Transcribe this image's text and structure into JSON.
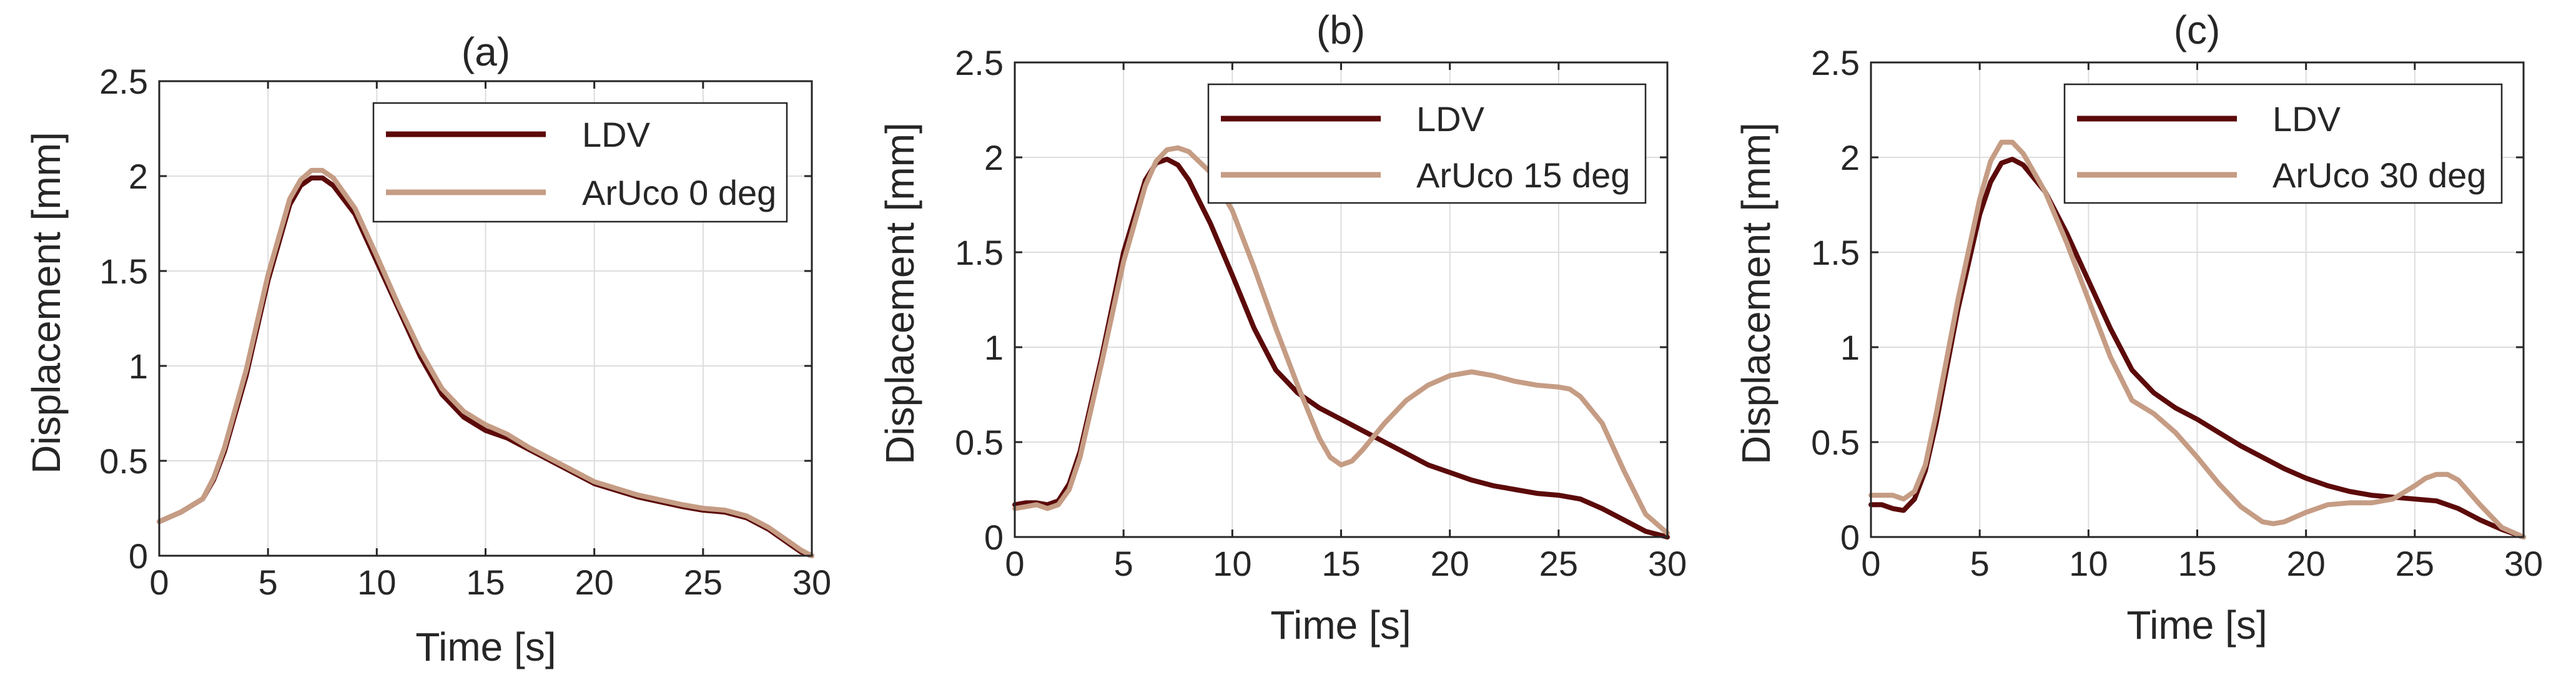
{
  "figure": {
    "colors": {
      "ldv": "#5c0a0a",
      "aruco": "#c59c84",
      "grid": "#dddddd",
      "axis": "#262626",
      "text": "#262626"
    }
  },
  "chart_data": [
    {
      "type": "line",
      "title": "(a)",
      "xlabel": "Time [s]",
      "ylabel": "Displacement [mm]",
      "xlim": [
        0,
        30
      ],
      "ylim": [
        0,
        2.5
      ],
      "xticks": [
        0,
        5,
        10,
        15,
        20,
        25,
        30
      ],
      "xtick_labels": [
        "0",
        "5",
        "10",
        "15",
        "20",
        "25",
        "30"
      ],
      "yticks": [
        0,
        0.5,
        1,
        1.5,
        2,
        2.5
      ],
      "ytick_labels": [
        "0",
        "0.5",
        "1",
        "1.5",
        "2",
        "2.5"
      ],
      "grid": true,
      "legend_position": "top-right",
      "series": [
        {
          "name": "LDV",
          "color": "#5c0a0a",
          "x": [
            0,
            1,
            2,
            2.5,
            3,
            4,
            5,
            6,
            6.5,
            7,
            7.5,
            8,
            9,
            10,
            11,
            12,
            13,
            14,
            15,
            16,
            17,
            18,
            19,
            20,
            22,
            24,
            25,
            26,
            27,
            28,
            29,
            29.5,
            30
          ],
          "y": [
            0.18,
            0.23,
            0.3,
            0.4,
            0.55,
            0.95,
            1.45,
            1.85,
            1.95,
            1.99,
            1.99,
            1.95,
            1.8,
            1.55,
            1.3,
            1.05,
            0.85,
            0.73,
            0.66,
            0.62,
            0.56,
            0.5,
            0.44,
            0.38,
            0.31,
            0.26,
            0.24,
            0.23,
            0.2,
            0.14,
            0.06,
            0.02,
            0
          ]
        },
        {
          "name": "ArUco 0 deg",
          "color": "#c59c84",
          "x": [
            0,
            1,
            2,
            2.5,
            3,
            4,
            5,
            6,
            6.5,
            7,
            7.5,
            8,
            9,
            10,
            11,
            12,
            13,
            14,
            15,
            16,
            17,
            18,
            19,
            20,
            22,
            24,
            25,
            26,
            27,
            28,
            29,
            29.5,
            30
          ],
          "y": [
            0.18,
            0.23,
            0.3,
            0.41,
            0.57,
            0.98,
            1.48,
            1.88,
            1.98,
            2.03,
            2.03,
            1.99,
            1.83,
            1.58,
            1.32,
            1.08,
            0.88,
            0.76,
            0.69,
            0.64,
            0.57,
            0.51,
            0.45,
            0.39,
            0.32,
            0.27,
            0.25,
            0.24,
            0.21,
            0.15,
            0.07,
            0.03,
            0
          ]
        }
      ]
    },
    {
      "type": "line",
      "title": "(b)",
      "xlabel": "Time [s]",
      "ylabel": "Displacement [mm]",
      "xlim": [
        0,
        30
      ],
      "ylim": [
        0,
        2.5
      ],
      "xticks": [
        0,
        5,
        10,
        15,
        20,
        25,
        30
      ],
      "xtick_labels": [
        "0",
        "5",
        "10",
        "15",
        "20",
        "25",
        "30"
      ],
      "yticks": [
        0,
        0.5,
        1,
        1.5,
        2,
        2.5
      ],
      "ytick_labels": [
        "0",
        "0.5",
        "1",
        "1.5",
        "2",
        "2.5"
      ],
      "grid": true,
      "legend_position": "top-right",
      "series": [
        {
          "name": "LDV",
          "color": "#5c0a0a",
          "x": [
            0,
            0.5,
            1,
            1.5,
            2,
            2.5,
            3,
            4,
            5,
            6,
            6.5,
            7,
            7.5,
            8,
            9,
            10,
            11,
            12,
            13,
            14,
            15,
            16,
            17,
            18,
            19,
            20,
            21,
            22,
            23,
            24,
            25,
            26,
            27,
            28,
            29,
            30
          ],
          "y": [
            0.17,
            0.18,
            0.18,
            0.17,
            0.19,
            0.28,
            0.45,
            0.95,
            1.5,
            1.88,
            1.97,
            1.99,
            1.96,
            1.88,
            1.65,
            1.38,
            1.1,
            0.88,
            0.76,
            0.68,
            0.62,
            0.56,
            0.5,
            0.44,
            0.38,
            0.34,
            0.3,
            0.27,
            0.25,
            0.23,
            0.22,
            0.2,
            0.15,
            0.09,
            0.03,
            0
          ]
        },
        {
          "name": "ArUco 15 deg",
          "color": "#c59c84",
          "x": [
            0,
            0.5,
            1,
            1.5,
            2,
            2.5,
            3,
            4,
            5,
            6,
            6.5,
            7,
            7.5,
            8,
            9,
            10,
            11,
            12,
            13,
            14,
            14.5,
            15,
            15.5,
            16,
            17,
            18,
            19,
            20,
            21,
            22,
            23,
            24,
            25,
            25.5,
            26,
            27,
            28,
            29,
            30
          ],
          "y": [
            0.15,
            0.16,
            0.17,
            0.15,
            0.17,
            0.25,
            0.42,
            0.92,
            1.45,
            1.85,
            1.98,
            2.04,
            2.05,
            2.03,
            1.92,
            1.72,
            1.42,
            1.1,
            0.8,
            0.52,
            0.42,
            0.38,
            0.4,
            0.46,
            0.6,
            0.72,
            0.8,
            0.85,
            0.87,
            0.85,
            0.82,
            0.8,
            0.79,
            0.78,
            0.74,
            0.6,
            0.35,
            0.12,
            0.02
          ]
        }
      ]
    },
    {
      "type": "line",
      "title": "(c)",
      "xlabel": "Time [s]",
      "ylabel": "Displacement [mm]",
      "xlim": [
        0,
        30
      ],
      "ylim": [
        0,
        2.5
      ],
      "xticks": [
        0,
        5,
        10,
        15,
        20,
        25,
        30
      ],
      "xtick_labels": [
        "0",
        "5",
        "10",
        "15",
        "20",
        "25",
        "30"
      ],
      "yticks": [
        0,
        0.5,
        1,
        1.5,
        2,
        2.5
      ],
      "ytick_labels": [
        "0",
        "0.5",
        "1",
        "1.5",
        "2",
        "2.5"
      ],
      "grid": true,
      "legend_position": "top-right",
      "series": [
        {
          "name": "LDV",
          "color": "#5c0a0a",
          "x": [
            0,
            0.5,
            1,
            1.5,
            2,
            2.5,
            3,
            4,
            5,
            5.5,
            6,
            6.5,
            7,
            8,
            9,
            10,
            11,
            12,
            13,
            14,
            15,
            16,
            17,
            18,
            19,
            20,
            21,
            22,
            23,
            24,
            25,
            26,
            27,
            28,
            29,
            30
          ],
          "y": [
            0.17,
            0.17,
            0.15,
            0.14,
            0.2,
            0.35,
            0.6,
            1.2,
            1.7,
            1.87,
            1.97,
            1.99,
            1.96,
            1.82,
            1.6,
            1.35,
            1.1,
            0.88,
            0.76,
            0.68,
            0.62,
            0.55,
            0.48,
            0.42,
            0.36,
            0.31,
            0.27,
            0.24,
            0.22,
            0.21,
            0.2,
            0.19,
            0.15,
            0.09,
            0.04,
            0
          ]
        },
        {
          "name": "ArUco 30 deg",
          "color": "#c59c84",
          "x": [
            0,
            0.5,
            1,
            1.5,
            2,
            2.5,
            3,
            4,
            5,
            5.5,
            6,
            6.5,
            7,
            8,
            9,
            10,
            11,
            12,
            13,
            14,
            15,
            16,
            17,
            18,
            18.5,
            19,
            20,
            21,
            22,
            23,
            24,
            25,
            25.5,
            26,
            26.5,
            27,
            28,
            29,
            30
          ],
          "y": [
            0.22,
            0.22,
            0.22,
            0.2,
            0.24,
            0.38,
            0.65,
            1.25,
            1.78,
            1.98,
            2.08,
            2.08,
            2.02,
            1.82,
            1.55,
            1.25,
            0.95,
            0.72,
            0.65,
            0.55,
            0.42,
            0.28,
            0.16,
            0.08,
            0.07,
            0.08,
            0.13,
            0.17,
            0.18,
            0.18,
            0.2,
            0.27,
            0.31,
            0.33,
            0.33,
            0.3,
            0.17,
            0.05,
            0
          ]
        }
      ]
    }
  ]
}
